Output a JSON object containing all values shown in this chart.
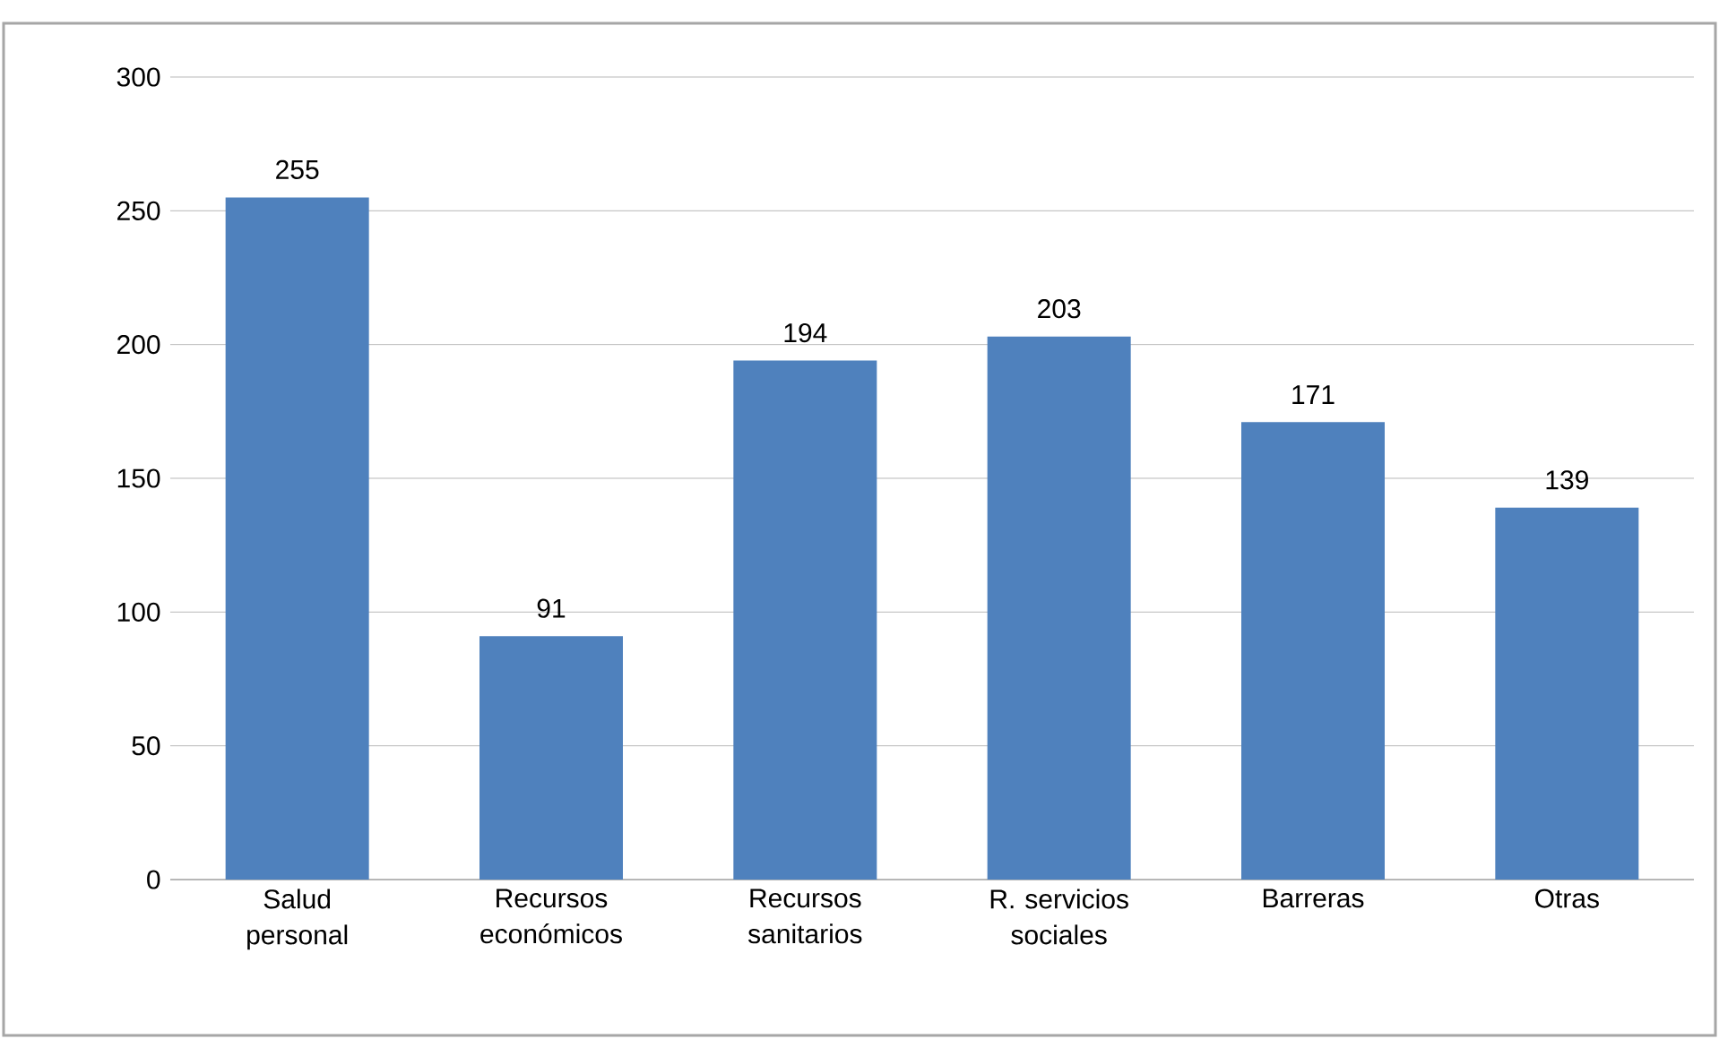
{
  "chart_data": {
    "type": "bar",
    "categories": [
      "Salud personal",
      "Recursos económicos",
      "Recursos sanitarios",
      "R. servicios sociales",
      "Barreras",
      "Otras"
    ],
    "values": [
      255,
      91,
      194,
      203,
      171,
      139
    ],
    "value_labels": [
      "255",
      "91",
      "194",
      "203",
      "171",
      "139"
    ],
    "color": "#4f81bd",
    "ylim": [
      0,
      300
    ],
    "yticks": [
      0,
      50,
      100,
      150,
      200,
      250,
      300
    ],
    "grid": "y"
  }
}
